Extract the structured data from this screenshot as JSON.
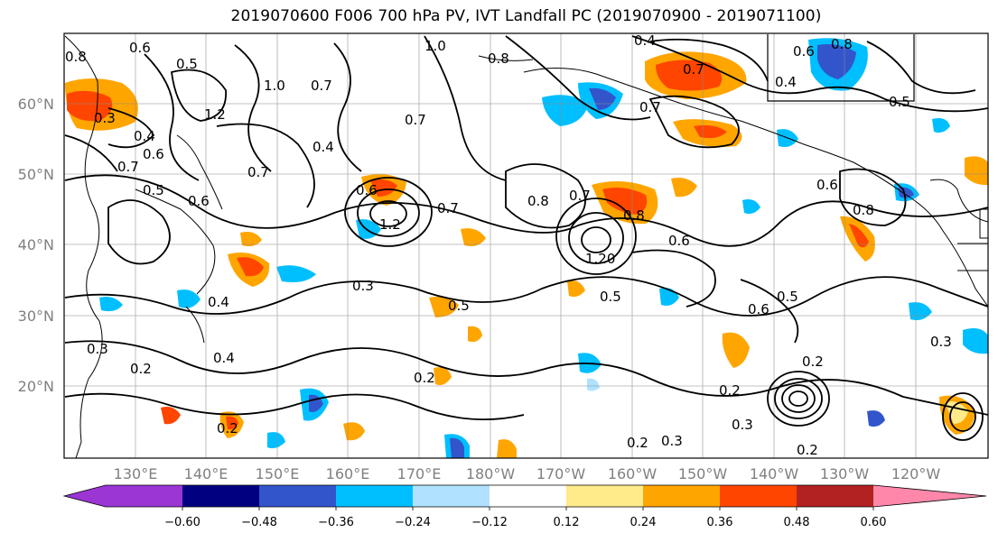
{
  "title": "2019070600 F006 700 hPa PV, IVT Landfall PC (2019070900 - 2019071100)",
  "map": {
    "lat_ticks": [
      "60°N",
      "50°N",
      "40°N",
      "30°N",
      "20°N"
    ],
    "lon_ticks": [
      "130°E",
      "140°E",
      "150°E",
      "160°E",
      "170°E",
      "180°W",
      "170°W",
      "160°W",
      "150°W",
      "140°W",
      "130°W",
      "120°W"
    ],
    "contour_labels": [
      {
        "text": "0.6"
      },
      {
        "text": "0.5"
      },
      {
        "text": "1.0"
      },
      {
        "text": "0.8"
      },
      {
        "text": "0.4"
      },
      {
        "text": "0.8"
      },
      {
        "text": "0.6"
      },
      {
        "text": "0.7"
      },
      {
        "text": "0.5"
      },
      {
        "text": "0.8"
      },
      {
        "text": "0.3"
      },
      {
        "text": "0.4"
      },
      {
        "text": "0.6"
      },
      {
        "text": "1.2"
      },
      {
        "text": "0.7"
      },
      {
        "text": "0.4"
      },
      {
        "text": "0.6"
      },
      {
        "text": "0.7"
      },
      {
        "text": "0.5"
      },
      {
        "text": "0.7"
      },
      {
        "text": "1.0"
      },
      {
        "text": "0.7"
      },
      {
        "text": "0.6"
      },
      {
        "text": "1.2"
      },
      {
        "text": "0.8"
      },
      {
        "text": "0.7"
      },
      {
        "text": "0.8"
      },
      {
        "text": "1.20"
      },
      {
        "text": "0.6"
      },
      {
        "text": "0.7"
      },
      {
        "text": "0.3"
      },
      {
        "text": "0.5"
      },
      {
        "text": "0.5"
      },
      {
        "text": "0.6"
      },
      {
        "text": "0.4"
      },
      {
        "text": "0.4"
      },
      {
        "text": "0.2"
      },
      {
        "text": "0.2"
      },
      {
        "text": "0.2"
      },
      {
        "text": "0.3"
      },
      {
        "text": "0.2"
      },
      {
        "text": "0.3"
      },
      {
        "text": "0.2"
      },
      {
        "text": "0.2"
      },
      {
        "text": "0.3"
      },
      {
        "text": "0.2"
      },
      {
        "text": "0.3"
      },
      {
        "text": "0.5"
      },
      {
        "text": "0.4"
      },
      {
        "text": "0.6"
      },
      {
        "text": "0.8"
      },
      {
        "text": "0.7"
      }
    ]
  },
  "colorbar": {
    "colors": [
      "#9b35d4",
      "#000080",
      "#3355cc",
      "#00bfff",
      "#b0e2ff",
      "#ffffff",
      "#ffeb8a",
      "#ffa500",
      "#ff4500",
      "#b22222",
      "#ff88aa"
    ],
    "tick_labels": [
      "−0.60",
      "−0.48",
      "−0.36",
      "−0.24",
      "−0.12",
      "0.12",
      "0.24",
      "0.36",
      "0.48",
      "0.60"
    ]
  }
}
